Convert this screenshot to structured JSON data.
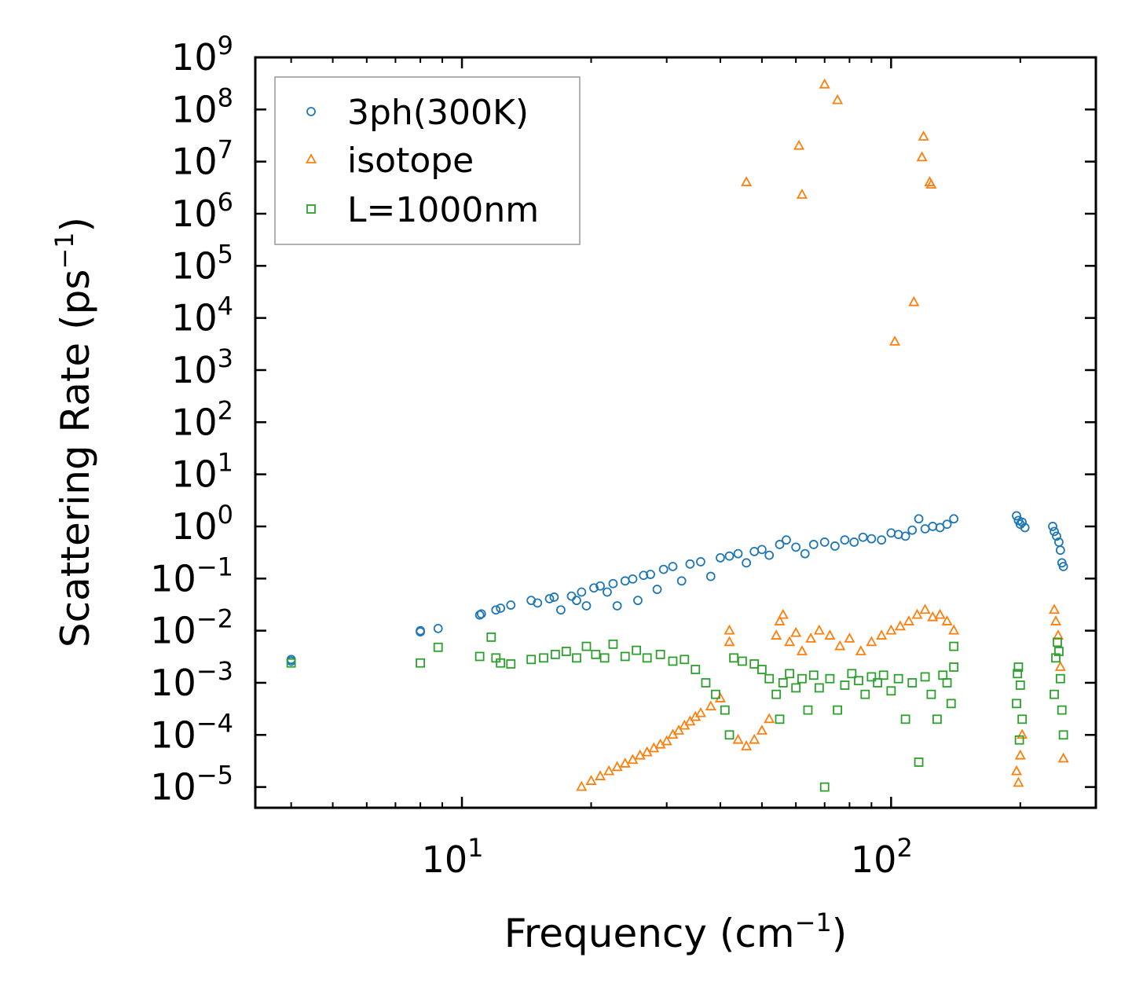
{
  "chart_data": {
    "type": "scatter",
    "title": "",
    "xlabel": "Frequency (cm",
    "xlabel_sup": "−1",
    "xlabel_close": ")",
    "ylabel": "Scattering Rate (ps",
    "ylabel_sup": "−1",
    "ylabel_close": ")",
    "xscale": "log",
    "yscale": "log",
    "xlim": [
      3.3,
      300
    ],
    "ylim": [
      4e-06,
      1000000000.0
    ],
    "legend_placement": "top-left",
    "x_ticks": [
      {
        "value": 10,
        "base": "10",
        "exp": "1"
      },
      {
        "value": 100,
        "base": "10",
        "exp": "2"
      }
    ],
    "y_ticks": [
      {
        "value": 1000000000.0,
        "base": "10",
        "exp": "9"
      },
      {
        "value": 100000000.0,
        "base": "10",
        "exp": "8"
      },
      {
        "value": 10000000.0,
        "base": "10",
        "exp": "7"
      },
      {
        "value": 1000000.0,
        "base": "10",
        "exp": "6"
      },
      {
        "value": 100000.0,
        "base": "10",
        "exp": "5"
      },
      {
        "value": 10000.0,
        "base": "10",
        "exp": "4"
      },
      {
        "value": 1000.0,
        "base": "10",
        "exp": "3"
      },
      {
        "value": 100.0,
        "base": "10",
        "exp": "2"
      },
      {
        "value": 10.0,
        "base": "10",
        "exp": "1"
      },
      {
        "value": 1,
        "base": "10",
        "exp": "0"
      },
      {
        "value": 0.1,
        "base": "10",
        "exp": "−1"
      },
      {
        "value": 0.01,
        "base": "10",
        "exp": "−2"
      },
      {
        "value": 0.001,
        "base": "10",
        "exp": "−3"
      },
      {
        "value": 0.0001,
        "base": "10",
        "exp": "−4"
      },
      {
        "value": 1e-05,
        "base": "10",
        "exp": "−5"
      }
    ],
    "series": [
      {
        "name": "3ph(300K)",
        "marker": "circle",
        "color": "#1f77b4",
        "points": [
          [
            4.0,
            0.0028
          ],
          [
            4.0,
            0.0026
          ],
          [
            8.0,
            0.01
          ],
          [
            8.0,
            0.0095
          ],
          [
            8.8,
            0.011
          ],
          [
            11.0,
            0.02
          ],
          [
            11.1,
            0.021
          ],
          [
            12.0,
            0.025
          ],
          [
            12.3,
            0.027
          ],
          [
            13.0,
            0.031
          ],
          [
            14.5,
            0.038
          ],
          [
            15.0,
            0.034
          ],
          [
            16.0,
            0.041
          ],
          [
            16.4,
            0.044
          ],
          [
            17.0,
            0.025
          ],
          [
            18.0,
            0.046
          ],
          [
            18.5,
            0.038
          ],
          [
            19.0,
            0.055
          ],
          [
            19.5,
            0.03
          ],
          [
            20.3,
            0.066
          ],
          [
            21.0,
            0.072
          ],
          [
            21.8,
            0.055
          ],
          [
            22.5,
            0.08
          ],
          [
            23.0,
            0.03
          ],
          [
            24.0,
            0.09
          ],
          [
            25.0,
            0.098
          ],
          [
            25.7,
            0.038
          ],
          [
            26.5,
            0.115
          ],
          [
            27.5,
            0.12
          ],
          [
            28.5,
            0.062
          ],
          [
            29.5,
            0.15
          ],
          [
            31.0,
            0.17
          ],
          [
            32.5,
            0.09
          ],
          [
            34.0,
            0.19
          ],
          [
            36.0,
            0.21
          ],
          [
            38.0,
            0.11
          ],
          [
            40.0,
            0.25
          ],
          [
            42.0,
            0.27
          ],
          [
            44.0,
            0.3
          ],
          [
            46.0,
            0.2
          ],
          [
            48.0,
            0.33
          ],
          [
            50.0,
            0.36
          ],
          [
            52.0,
            0.28
          ],
          [
            55.0,
            0.45
          ],
          [
            57.0,
            0.55
          ],
          [
            60.0,
            0.4
          ],
          [
            63.0,
            0.3
          ],
          [
            66.0,
            0.45
          ],
          [
            70.0,
            0.5
          ],
          [
            74.0,
            0.42
          ],
          [
            78.0,
            0.55
          ],
          [
            82.0,
            0.5
          ],
          [
            86.0,
            0.62
          ],
          [
            90.0,
            0.58
          ],
          [
            95.0,
            0.55
          ],
          [
            100.0,
            0.75
          ],
          [
            104.0,
            0.7
          ],
          [
            108.0,
            0.65
          ],
          [
            112.0,
            0.85
          ],
          [
            116.0,
            1.4
          ],
          [
            120.0,
            0.9
          ],
          [
            125.0,
            1.0
          ],
          [
            130.0,
            0.95
          ],
          [
            135.0,
            1.1
          ],
          [
            140.0,
            1.4
          ],
          [
            196.0,
            1.6
          ],
          [
            198.0,
            1.3
          ],
          [
            200.0,
            1.1
          ],
          [
            202.0,
            1.2
          ],
          [
            205.0,
            0.95
          ],
          [
            238.0,
            1.0
          ],
          [
            240.0,
            0.8
          ],
          [
            243.0,
            0.65
          ],
          [
            246.0,
            0.5
          ],
          [
            248.0,
            0.35
          ],
          [
            250.0,
            0.2
          ],
          [
            252.0,
            0.17
          ]
        ]
      },
      {
        "name": "isotope",
        "marker": "triangle",
        "color": "#ff7f0e",
        "points": [
          [
            70.0,
            300000000.0
          ],
          [
            75.0,
            150000000.0
          ],
          [
            61.0,
            20000000.0
          ],
          [
            119.0,
            30000000.0
          ],
          [
            118.0,
            12000000.0
          ],
          [
            46.0,
            4000000.0
          ],
          [
            62.0,
            2300000.0
          ],
          [
            123.0,
            4000000.0
          ],
          [
            124.0,
            3600000.0
          ],
          [
            113.0,
            20000.0
          ],
          [
            102.0,
            3500.0
          ],
          [
            19.0,
            1e-05
          ],
          [
            20.0,
            1.3e-05
          ],
          [
            21.0,
            1.6e-05
          ],
          [
            22.0,
            2e-05
          ],
          [
            23.0,
            2.4e-05
          ],
          [
            24.0,
            2.8e-05
          ],
          [
            25.0,
            3.3e-05
          ],
          [
            26.0,
            4e-05
          ],
          [
            27.0,
            4.6e-05
          ],
          [
            28.0,
            5.5e-05
          ],
          [
            29.0,
            6.5e-05
          ],
          [
            30.0,
            7.5e-05
          ],
          [
            31.0,
            0.0001
          ],
          [
            32.0,
            0.00012
          ],
          [
            33.0,
            0.00015
          ],
          [
            34.0,
            0.00018
          ],
          [
            35.0,
            0.00022
          ],
          [
            36.0,
            0.00026
          ],
          [
            38.0,
            0.00035
          ],
          [
            40.0,
            0.0005
          ],
          [
            42.0,
            0.006
          ],
          [
            42.0,
            0.01
          ],
          [
            44.0,
            8e-05
          ],
          [
            46.0,
            6e-05
          ],
          [
            48.0,
            8e-05
          ],
          [
            50.0,
            0.00012
          ],
          [
            52.0,
            0.0002
          ],
          [
            54.0,
            0.008
          ],
          [
            55.0,
            0.015
          ],
          [
            56.0,
            0.02
          ],
          [
            58.0,
            0.006
          ],
          [
            60.0,
            0.009
          ],
          [
            62.0,
            0.004
          ],
          [
            65.0,
            0.007
          ],
          [
            68.0,
            0.01
          ],
          [
            72.0,
            0.008
          ],
          [
            76.0,
            0.005
          ],
          [
            80.0,
            0.007
          ],
          [
            85.0,
            0.004
          ],
          [
            90.0,
            0.006
          ],
          [
            95.0,
            0.008
          ],
          [
            100.0,
            0.01
          ],
          [
            105.0,
            0.012
          ],
          [
            110.0,
            0.015
          ],
          [
            115.0,
            0.02
          ],
          [
            120.0,
            0.025
          ],
          [
            125.0,
            0.018
          ],
          [
            130.0,
            0.02
          ],
          [
            135.0,
            0.015
          ],
          [
            140.0,
            0.01
          ],
          [
            196.0,
            2e-05
          ],
          [
            198.0,
            1.2e-05
          ],
          [
            200.0,
            4e-05
          ],
          [
            202.0,
            0.0001
          ],
          [
            240.0,
            0.025
          ],
          [
            242.0,
            0.015
          ],
          [
            245.0,
            0.008
          ],
          [
            248.0,
            0.002
          ],
          [
            252.0,
            3.5e-05
          ]
        ]
      },
      {
        "name": "L=1000nm",
        "marker": "square",
        "color": "#2ca02c",
        "points": [
          [
            4.0,
            0.0024
          ],
          [
            8.0,
            0.0024
          ],
          [
            8.8,
            0.0048
          ],
          [
            11.0,
            0.0032
          ],
          [
            11.7,
            0.0075
          ],
          [
            12.0,
            0.003
          ],
          [
            12.3,
            0.0024
          ],
          [
            13.0,
            0.0023
          ],
          [
            14.5,
            0.0028
          ],
          [
            15.5,
            0.003
          ],
          [
            16.5,
            0.0035
          ],
          [
            17.5,
            0.004
          ],
          [
            18.5,
            0.003
          ],
          [
            19.5,
            0.005
          ],
          [
            20.5,
            0.0035
          ],
          [
            21.5,
            0.003
          ],
          [
            22.5,
            0.0055
          ],
          [
            24.0,
            0.0032
          ],
          [
            25.5,
            0.0042
          ],
          [
            27.0,
            0.003
          ],
          [
            29.0,
            0.0035
          ],
          [
            31.0,
            0.0026
          ],
          [
            33.0,
            0.0028
          ],
          [
            35.0,
            0.0018
          ],
          [
            37.0,
            0.001
          ],
          [
            39.0,
            0.0006
          ],
          [
            41.0,
            0.0003
          ],
          [
            42.0,
            0.0001
          ],
          [
            43.0,
            0.003
          ],
          [
            45.0,
            0.0026
          ],
          [
            48.0,
            0.0023
          ],
          [
            50.0,
            0.0018
          ],
          [
            52.0,
            0.0012
          ],
          [
            54.0,
            0.0006
          ],
          [
            55.0,
            0.0002
          ],
          [
            56.0,
            0.001
          ],
          [
            58.0,
            0.0015
          ],
          [
            60.0,
            0.0008
          ],
          [
            62.0,
            0.0012
          ],
          [
            64.0,
            0.0003
          ],
          [
            66.0,
            0.0014
          ],
          [
            68.0,
            0.0008
          ],
          [
            70.0,
            1e-05
          ],
          [
            72.0,
            0.0012
          ],
          [
            75.0,
            0.0003
          ],
          [
            78.0,
            0.0009
          ],
          [
            81.0,
            0.0015
          ],
          [
            84.0,
            0.0011
          ],
          [
            87.0,
            0.0006
          ],
          [
            90.0,
            0.0013
          ],
          [
            93.0,
            0.001
          ],
          [
            96.0,
            0.0014
          ],
          [
            100.0,
            0.0007
          ],
          [
            104.0,
            0.0012
          ],
          [
            108.0,
            0.0002
          ],
          [
            112.0,
            0.001
          ],
          [
            116.0,
            3e-05
          ],
          [
            120.0,
            0.0013
          ],
          [
            124.0,
            0.0006
          ],
          [
            128.0,
            0.0002
          ],
          [
            132.0,
            0.0014
          ],
          [
            135.0,
            0.001
          ],
          [
            138.0,
            0.0004
          ],
          [
            140.0,
            0.002
          ],
          [
            140.0,
            0.005
          ],
          [
            196.0,
            0.0004
          ],
          [
            197.0,
            0.0015
          ],
          [
            198.0,
            0.002
          ],
          [
            199.0,
            8e-05
          ],
          [
            200.0,
            0.0009
          ],
          [
            202.0,
            0.0002
          ],
          [
            240.0,
            0.0006
          ],
          [
            242.0,
            0.003
          ],
          [
            244.0,
            0.006
          ],
          [
            246.0,
            0.004
          ],
          [
            248.0,
            0.0012
          ],
          [
            250.0,
            0.0003
          ],
          [
            252.0,
            0.0001
          ]
        ]
      }
    ]
  }
}
